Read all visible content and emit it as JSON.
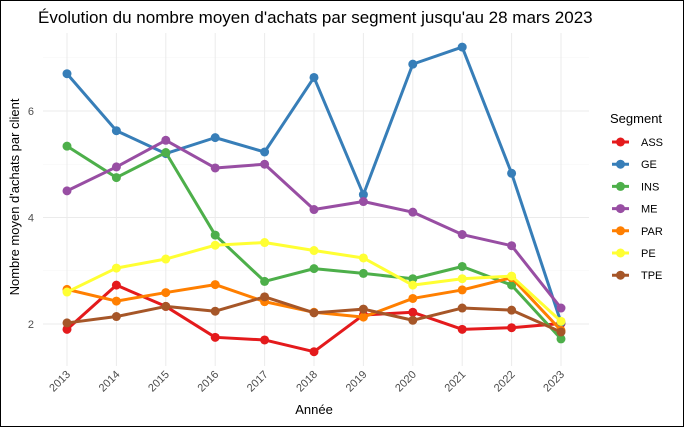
{
  "chart_data": {
    "type": "line",
    "title": "Évolution du nombre moyen d'achats par segment jusqu'au 28 mars 2023",
    "xlabel": "Année",
    "ylabel": "Nombre moyen d'achats par client",
    "categories": [
      "2013",
      "2014",
      "2015",
      "2016",
      "2017",
      "2018",
      "2019",
      "2020",
      "2021",
      "2022",
      "2023"
    ],
    "ylim": [
      1.2,
      7.5
    ],
    "yticks": [
      2,
      4,
      6
    ],
    "grid": true,
    "legend": {
      "title": "Segment",
      "position": "right"
    },
    "series": [
      {
        "name": "ASS",
        "color": "#e41a1c",
        "values": [
          1.9,
          2.73,
          2.33,
          1.75,
          1.7,
          1.48,
          2.17,
          2.22,
          1.9,
          1.93,
          2.01
        ]
      },
      {
        "name": "GE",
        "color": "#377eb8",
        "values": [
          6.7,
          5.63,
          5.2,
          5.5,
          5.23,
          6.63,
          4.43,
          6.88,
          7.2,
          4.83,
          2.03
        ]
      },
      {
        "name": "INS",
        "color": "#4daf4a",
        "values": [
          5.34,
          4.75,
          5.22,
          3.67,
          2.8,
          3.04,
          2.95,
          2.85,
          3.08,
          2.73,
          1.72
        ]
      },
      {
        "name": "ME",
        "color": "#984ea3",
        "values": [
          4.5,
          4.95,
          5.45,
          4.93,
          5.0,
          4.15,
          4.3,
          4.1,
          3.68,
          3.47,
          2.3
        ]
      },
      {
        "name": "PAR",
        "color": "#ff7f00",
        "values": [
          2.65,
          2.43,
          2.59,
          2.74,
          2.42,
          2.22,
          2.13,
          2.48,
          2.64,
          2.87,
          1.88
        ]
      },
      {
        "name": "PE",
        "color": "#ffff33",
        "values": [
          2.6,
          3.05,
          3.22,
          3.48,
          3.53,
          3.38,
          3.24,
          2.73,
          2.85,
          2.9,
          2.05
        ]
      },
      {
        "name": "TPE",
        "color": "#a65628",
        "values": [
          2.02,
          2.14,
          2.33,
          2.24,
          2.51,
          2.21,
          2.28,
          2.07,
          2.3,
          2.26,
          1.85
        ]
      }
    ]
  }
}
